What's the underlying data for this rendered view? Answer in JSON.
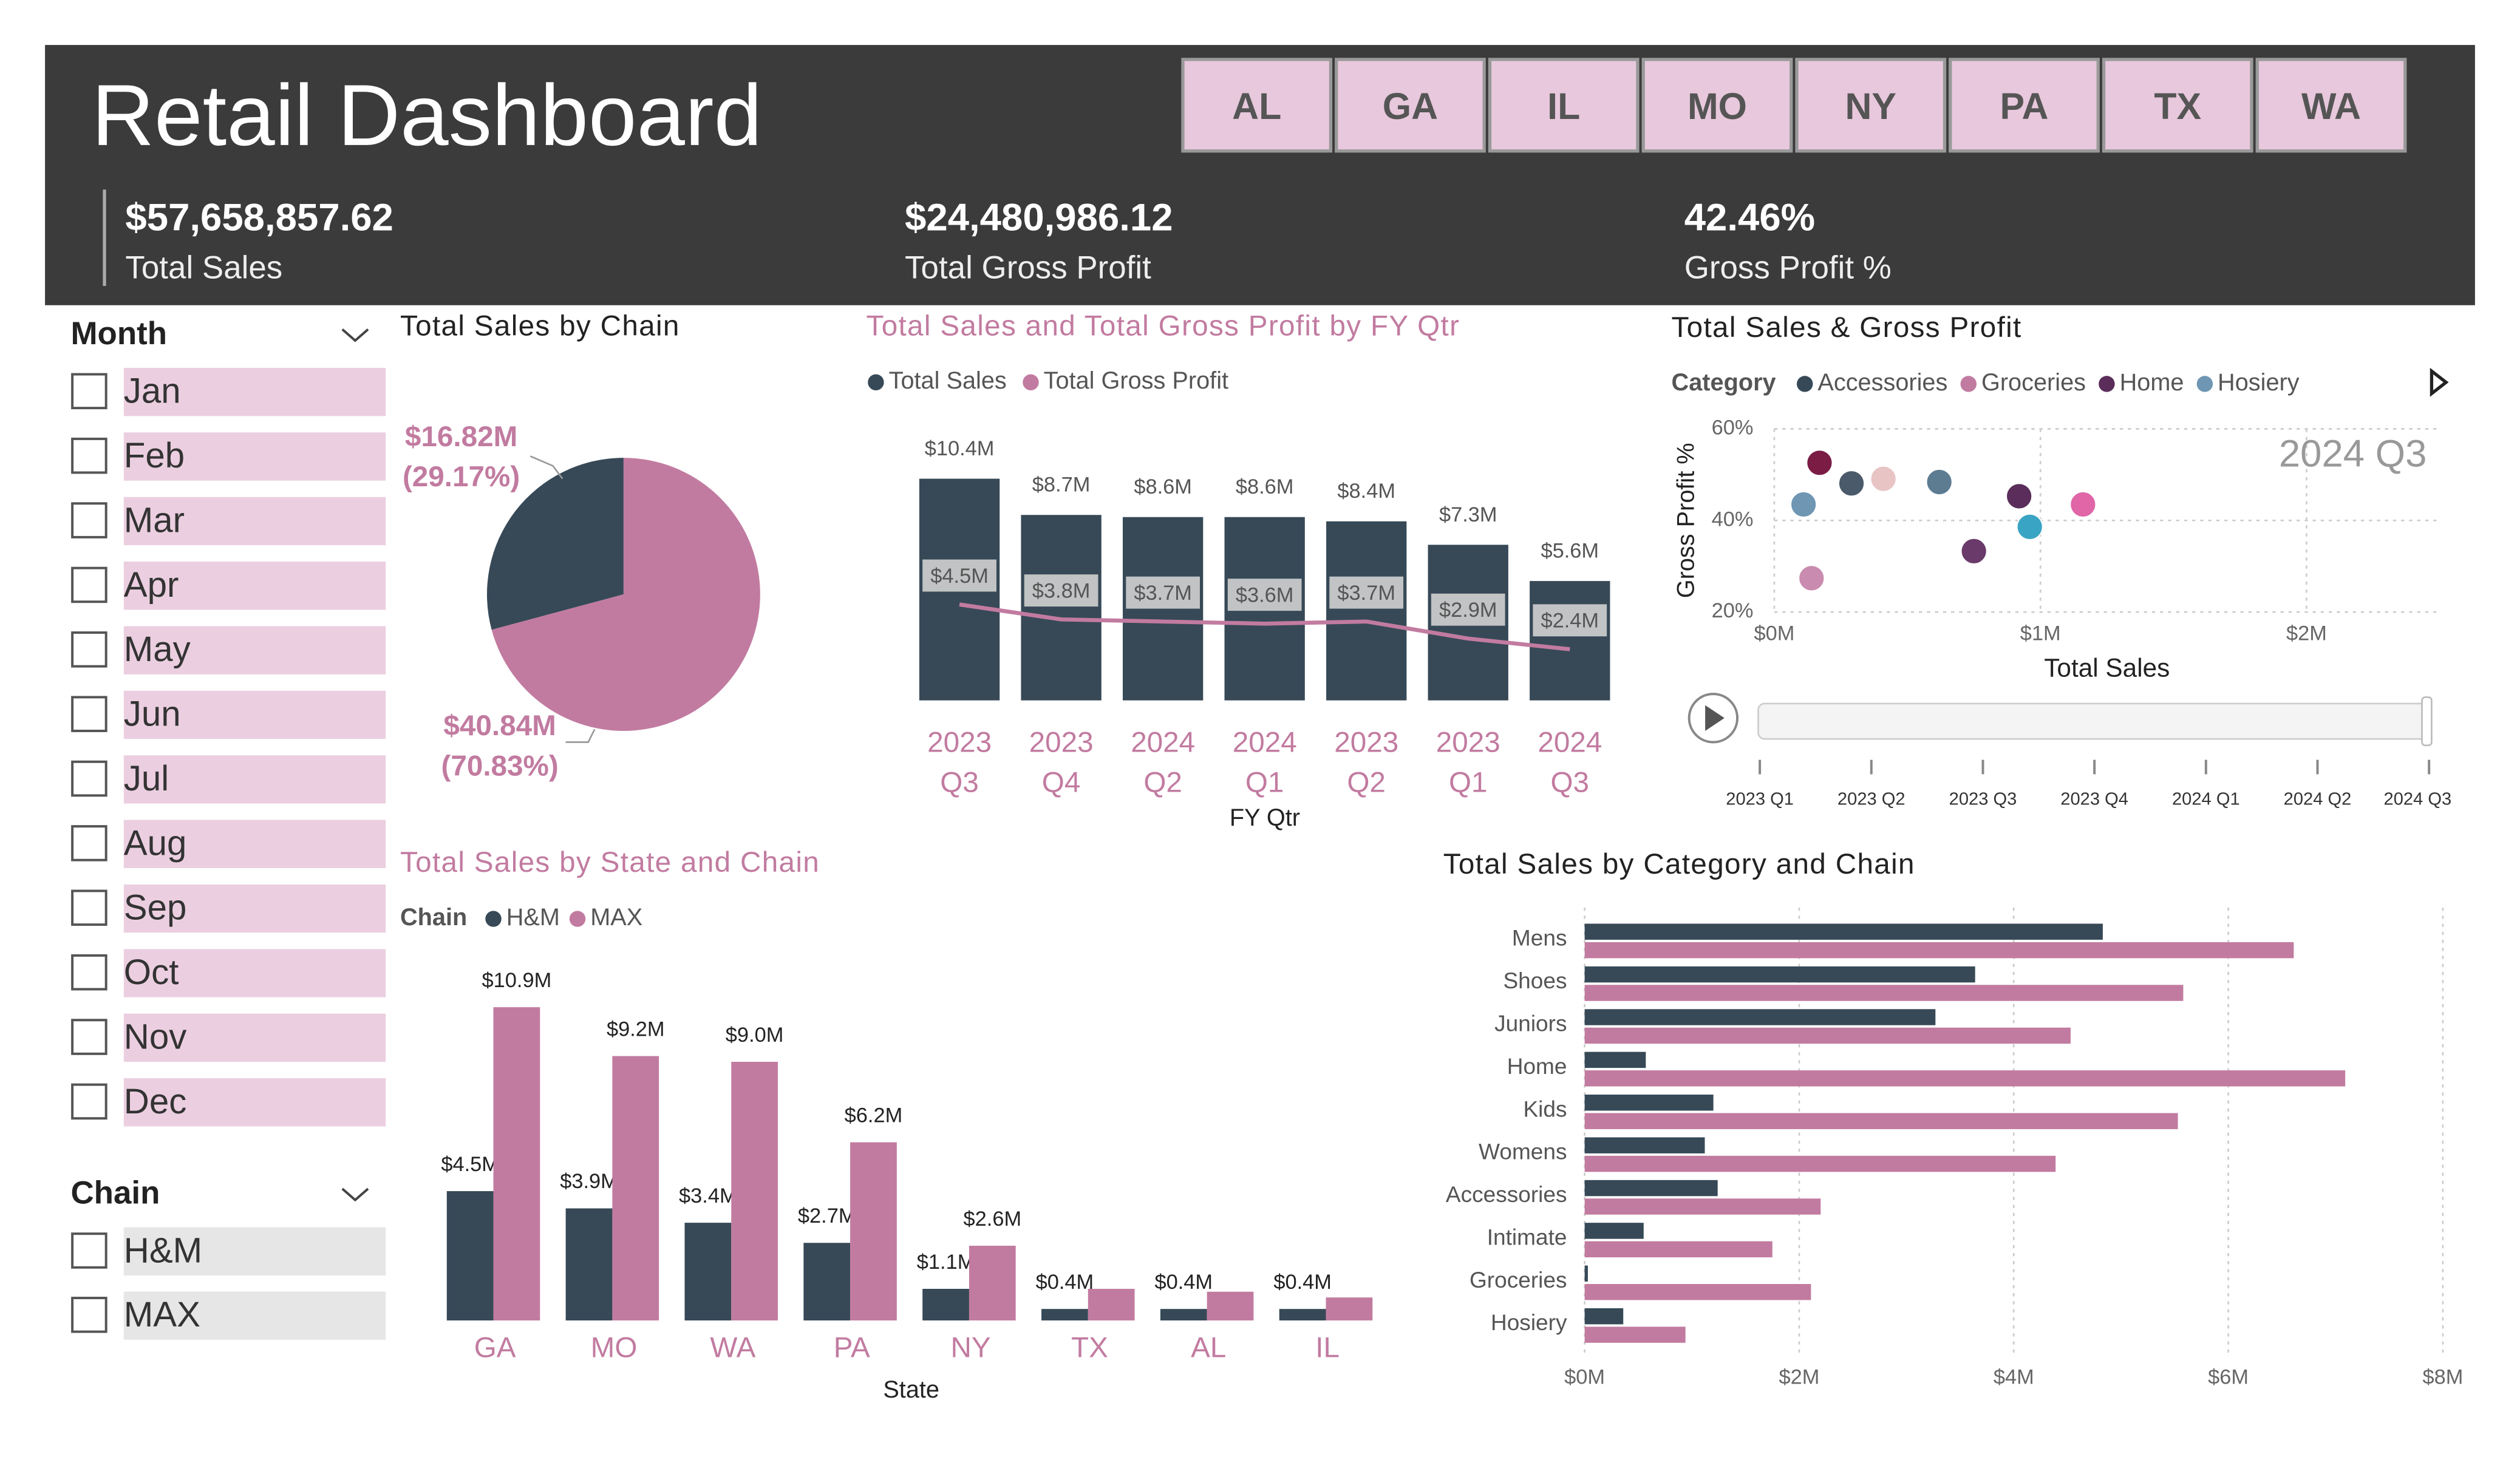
{
  "header": {
    "title": "Retail Dashboard",
    "states": [
      "AL",
      "GA",
      "IL",
      "MO",
      "NY",
      "PA",
      "TX",
      "WA"
    ]
  },
  "kpis": [
    {
      "value": "$57,658,857.62",
      "label": "Total Sales"
    },
    {
      "value": "$24,480,986.12",
      "label": "Total Gross Profit"
    },
    {
      "value": "42.46%",
      "label": "Gross Profit %"
    }
  ],
  "slicers": [
    {
      "title": "Month",
      "items": [
        "Jan",
        "Feb",
        "Mar",
        "Apr",
        "May",
        "Jun",
        "Jul",
        "Aug",
        "Sep",
        "Oct",
        "Nov",
        "Dec"
      ]
    },
    {
      "title": "Chain",
      "items": [
        "H&M",
        "MAX"
      ]
    }
  ],
  "chart_data": [
    {
      "type": "pie",
      "title": "Total Sales by Chain",
      "values": [
        16.82,
        40.84
      ],
      "value_labels": [
        "$16.82M",
        "$40.84M"
      ],
      "percents": [
        29.17,
        70.83
      ],
      "percent_labels": [
        "(29.17%)",
        "(70.83%)"
      ],
      "colors": [
        "#374957",
        "#c27ba0"
      ]
    },
    {
      "type": "combo",
      "title": "Total Sales and Total Gross Profit by FY Qtr",
      "x_label": "FY Qtr",
      "categories": [
        "2023 Q3",
        "2023 Q4",
        "2024 Q2",
        "2024 Q1",
        "2023 Q2",
        "2023 Q1",
        "2024 Q3"
      ],
      "series": [
        {
          "name": "Total Sales",
          "color": "#374957",
          "values": [
            10.4,
            8.7,
            8.6,
            8.6,
            8.4,
            7.3,
            5.6
          ],
          "value_labels": [
            "$10.4M",
            "$8.7M",
            "$8.6M",
            "$8.6M",
            "$8.4M",
            "$7.3M",
            "$5.6M"
          ]
        },
        {
          "name": "Total Gross Profit",
          "color": "#c27ba0",
          "values": [
            4.5,
            3.8,
            3.7,
            3.6,
            3.7,
            2.9,
            2.4
          ],
          "value_labels": [
            "$4.5M",
            "$3.8M",
            "$3.7M",
            "$3.6M",
            "$3.7M",
            "$2.9M",
            "$2.4M"
          ]
        }
      ]
    },
    {
      "type": "scatter",
      "title": "Total Sales & Gross Profit",
      "legend_title": "Category",
      "x_label": "Total Sales",
      "y_label": "Gross Profit %",
      "xlim": [
        0,
        2.5
      ],
      "xticks": [
        {
          "value": 0,
          "label": "$0M"
        },
        {
          "value": 1,
          "label": "$1M"
        },
        {
          "value": 2,
          "label": "$2M"
        }
      ],
      "ylim": [
        20,
        60
      ],
      "yticks": [
        {
          "value": 20,
          "label": "20%"
        },
        {
          "value": 40,
          "label": "40%"
        },
        {
          "value": 60,
          "label": "60%"
        }
      ],
      "grid": true,
      "play_axis": [
        "2023 Q1",
        "2023 Q2",
        "2023 Q3",
        "2023 Q4",
        "2024 Q1",
        "2024 Q2",
        "2024 Q3"
      ],
      "series": [
        {
          "name": "Accessories",
          "color": "#374957",
          "x": [
            0.29,
            0.62
          ],
          "values": [
            48.1,
            48.4
          ],
          "colors": [
            "#4a5a6a",
            "#5d7b91"
          ]
        },
        {
          "name": "Groceries",
          "color": "#c27ba0",
          "x": [
            1.16,
            0.41,
            0.14
          ],
          "values": [
            43.5,
            49.1,
            27.4
          ],
          "colors": [
            "#e066a8",
            "#e8c4c4",
            "#c98bb0"
          ]
        },
        {
          "name": "Home",
          "color": "#5a2d5a",
          "x": [
            0.17,
            0.92,
            0.75
          ],
          "values": [
            52.6,
            45.3,
            33.3
          ],
          "colors": [
            "#7b1c45",
            "#5a2d5a",
            "#6a3a6a"
          ]
        },
        {
          "name": "Hosiery",
          "color": "#6f96b3",
          "x": [
            0.11,
            0.96
          ],
          "values": [
            43.5,
            38.6
          ],
          "colors": [
            "#6f96b3",
            "#3aa4c4"
          ]
        }
      ]
    },
    {
      "type": "grouped_bar",
      "title": "Total Sales by State and Chain",
      "legend_title": "Chain",
      "x_label": "State",
      "categories": [
        "GA",
        "MO",
        "WA",
        "PA",
        "NY",
        "TX",
        "AL",
        "IL"
      ],
      "series": [
        {
          "name": "H&M",
          "color": "#374957",
          "values": [
            4.5,
            3.9,
            3.4,
            2.7,
            1.1,
            0.4,
            0.4,
            0.4
          ],
          "value_labels": [
            "$4.5M",
            "$3.9M",
            "$3.4M",
            "$2.7M",
            "$1.1M",
            "$0.4M",
            "$0.4M",
            "$0.4M"
          ]
        },
        {
          "name": "MAX",
          "color": "#c27ba0",
          "values": [
            10.9,
            9.2,
            9.0,
            6.2,
            2.6,
            1.1,
            1.0,
            0.8
          ],
          "value_labels": [
            "$10.9M",
            "$9.2M",
            "$9.0M",
            "$6.2M",
            "$2.6M",
            null,
            null,
            null
          ]
        }
      ]
    },
    {
      "type": "hbar",
      "title": "Total Sales by Category and Chain",
      "categories": [
        "Mens",
        "Shoes",
        "Juniors",
        "Home",
        "Kids",
        "Womens",
        "Accessories",
        "Intimate",
        "Groceries",
        "Hosiery"
      ],
      "xlim": [
        0,
        8
      ],
      "xticks": [
        {
          "value": 0,
          "label": "$0M"
        },
        {
          "value": 2,
          "label": "$2M"
        },
        {
          "value": 4,
          "label": "$4M"
        },
        {
          "value": 6,
          "label": "$6M"
        },
        {
          "value": 8,
          "label": "$8M"
        }
      ],
      "grid": true,
      "series": [
        {
          "color": "#374957",
          "values": [
            4.83,
            3.64,
            3.27,
            0.57,
            1.2,
            1.12,
            1.24,
            0.55,
            0.03,
            0.36
          ]
        },
        {
          "color": "#c27ba0",
          "values": [
            6.61,
            5.58,
            4.53,
            7.09,
            5.53,
            4.39,
            2.2,
            1.75,
            2.11,
            0.94
          ]
        }
      ]
    }
  ]
}
